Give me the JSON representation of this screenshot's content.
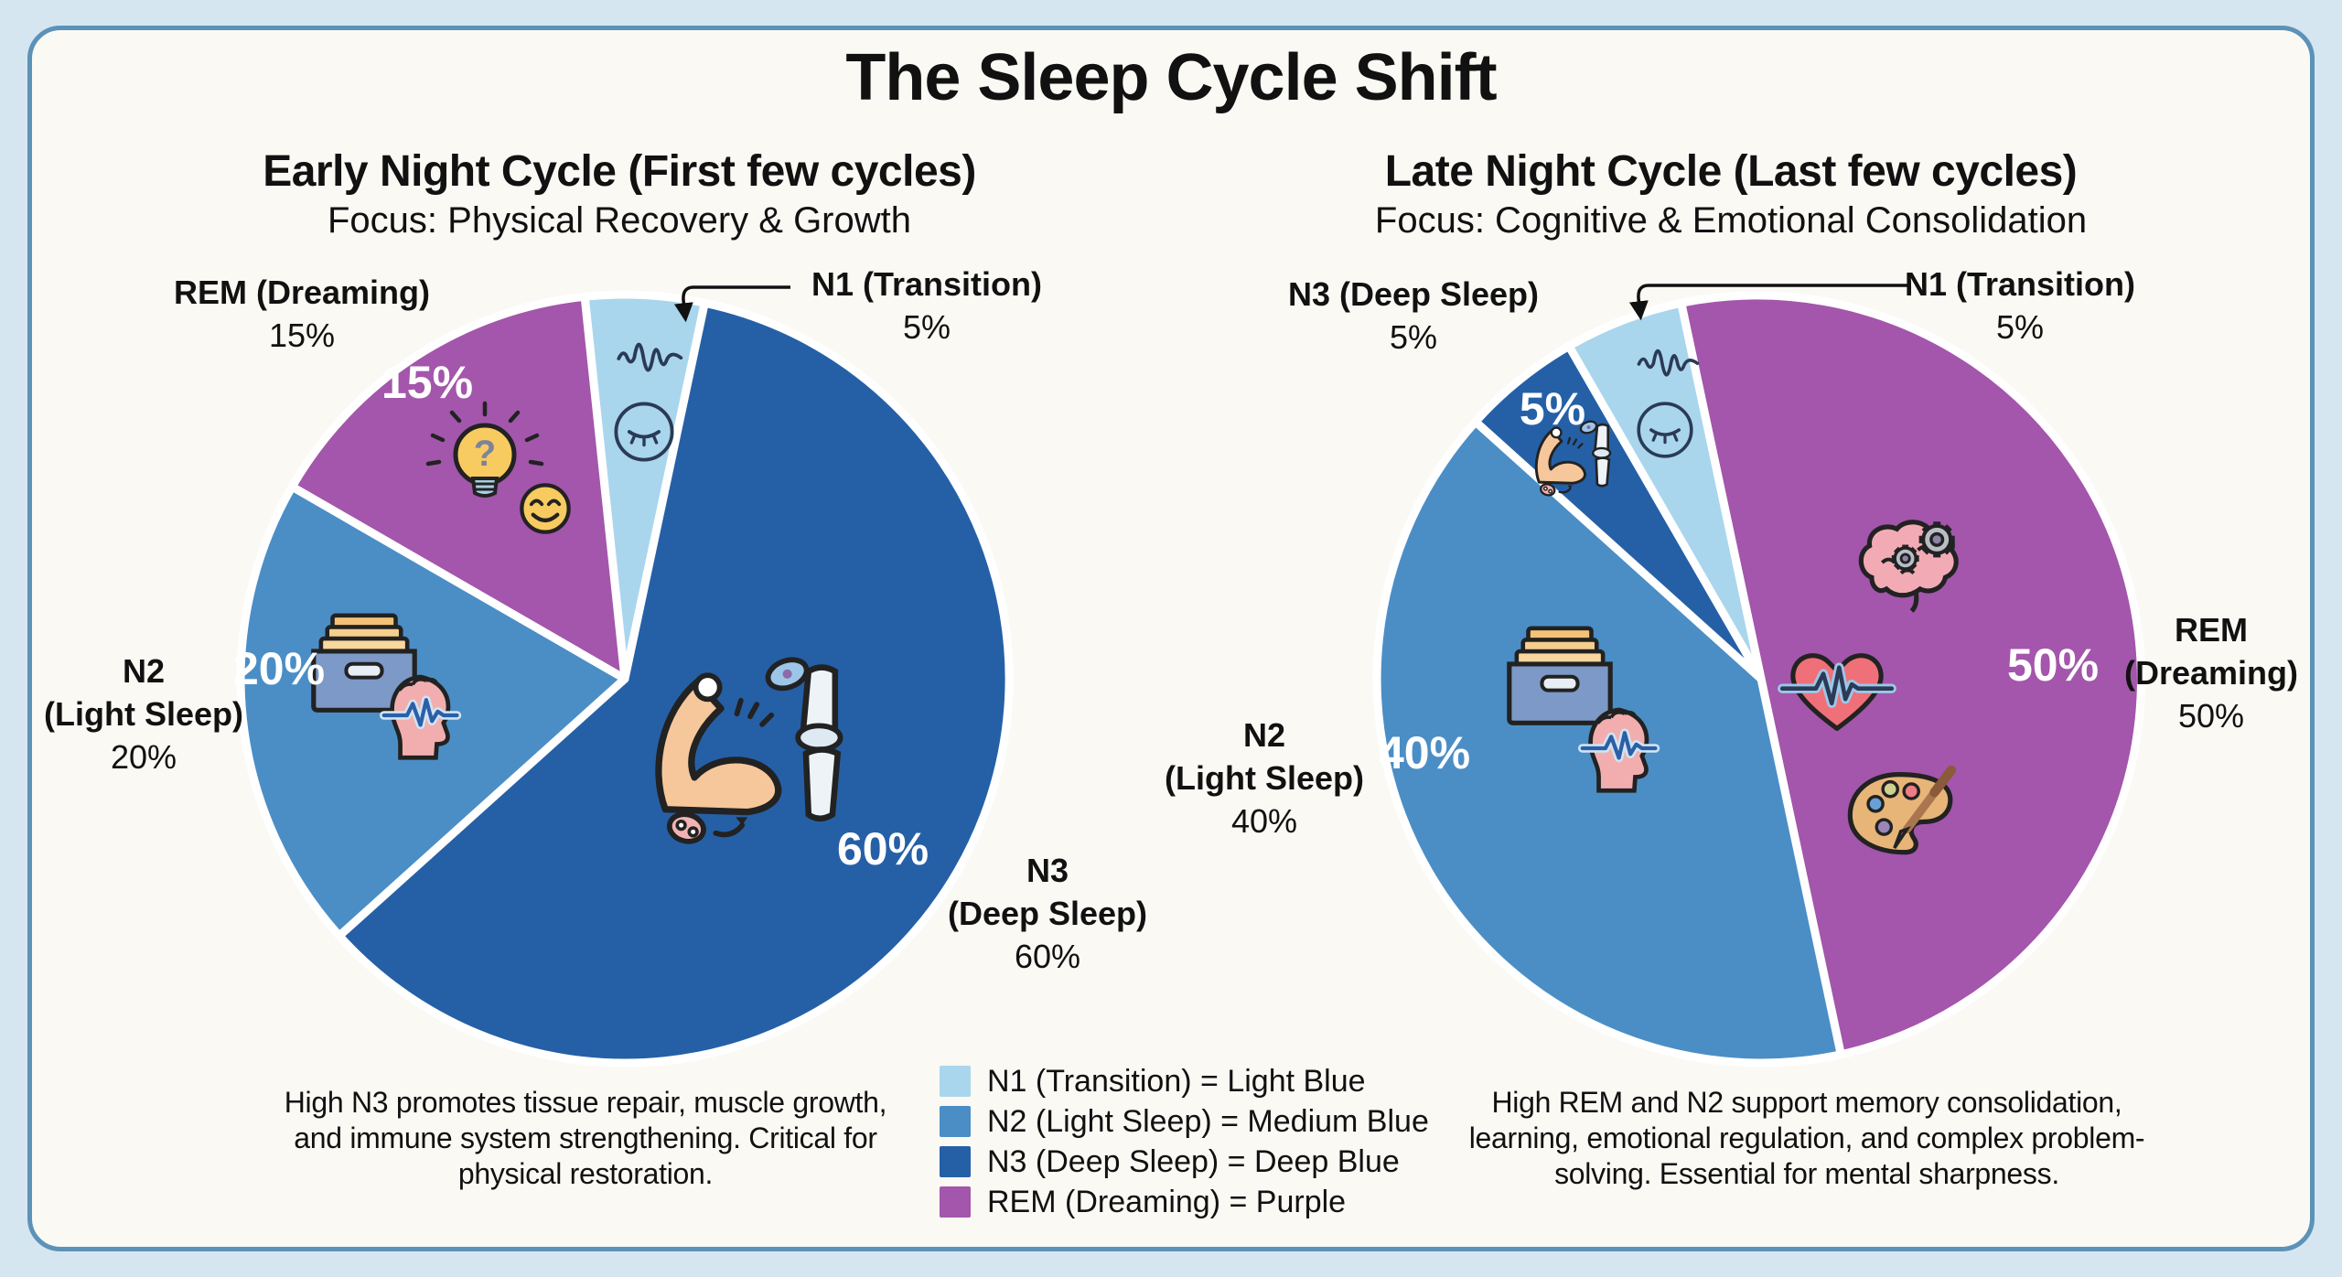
{
  "page": {
    "title": "The Sleep Cycle Shift"
  },
  "chart_data": [
    {
      "type": "pie",
      "title": "Early Night Cycle (First few cycles)",
      "subtitle": "Focus: Physical Recovery & Growth",
      "order_clockwise_from_top": [
        "N1",
        "N3",
        "N2",
        "REM"
      ],
      "slices": [
        {
          "id": "n1",
          "label": "N1 (Transition)",
          "value": 5,
          "pct": "5%",
          "color": "#a9d6ed",
          "color_name": "Light Blue",
          "icons": [
            "brainwave-icon",
            "sleeping-eye-icon"
          ],
          "inside_pct_shown": false
        },
        {
          "id": "n3",
          "label": "N3 (Deep Sleep)",
          "value": 60,
          "pct": "60%",
          "color": "#2560a7",
          "color_name": "Deep Blue",
          "icons": [
            "muscle-joint-icon"
          ],
          "inside_pct_shown": true
        },
        {
          "id": "n2",
          "label": "N2 (Light Sleep)",
          "value": 20,
          "pct": "20%",
          "color": "#4b8ec6",
          "color_name": "Medium Blue",
          "icons": [
            "file-cabinet-icon",
            "head-pulse-icon"
          ],
          "inside_pct_shown": true
        },
        {
          "id": "rem",
          "label": "REM (Dreaming)",
          "value": 15,
          "pct": "15%",
          "color": "#a356ab",
          "color_name": "Purple",
          "icons": [
            "lightbulb-question-icon",
            "smiley-icon"
          ],
          "inside_pct_shown": true
        }
      ],
      "note": "High N3 promotes tissue repair, muscle growth, and immune system strengthening. Critical for physical restoration."
    },
    {
      "type": "pie",
      "title": "Late Night Cycle (Last few cycles)",
      "subtitle": "Focus: Cognitive & Emotional Consolidation",
      "order_clockwise_from_top": [
        "REM",
        "N2",
        "N3",
        "N1"
      ],
      "slices": [
        {
          "id": "rem",
          "label": "REM (Dreaming)",
          "value": 50,
          "pct": "50%",
          "color": "#a356ab",
          "color_name": "Purple",
          "icons": [
            "brain-gears-icon",
            "heart-ekg-icon",
            "palette-icon"
          ],
          "inside_pct_shown": true
        },
        {
          "id": "n2",
          "label": "N2 (Light Sleep)",
          "value": 40,
          "pct": "40%",
          "color": "#4b8ec6",
          "color_name": "Medium Blue",
          "icons": [
            "file-cabinet-icon",
            "head-pulse-icon"
          ],
          "inside_pct_shown": true
        },
        {
          "id": "n3",
          "label": "N3 (Deep Sleep)",
          "value": 5,
          "pct": "5%",
          "color": "#2560a7",
          "color_name": "Deep Blue",
          "icons": [
            "muscle-mini-icon"
          ],
          "inside_pct_shown": true
        },
        {
          "id": "n1",
          "label": "N1 (Transition)",
          "value": 5,
          "pct": "5%",
          "color": "#a9d6ed",
          "color_name": "Light Blue",
          "icons": [
            "brainwave-icon",
            "sleeping-eye-icon"
          ],
          "inside_pct_shown": false
        }
      ],
      "note": "High REM and N2 support memory consolidation, learning, emotional regulation, and complex problem-solving. Essential for mental sharpness."
    }
  ],
  "callouts": {
    "left_rem": [
      "REM (Dreaming)",
      "15%"
    ],
    "left_n1": [
      "N1 (Transition)",
      "5%"
    ],
    "left_n2": [
      "N2",
      "(Light Sleep)",
      "20%"
    ],
    "left_n3": [
      "N3",
      "(Deep Sleep)",
      "60%"
    ],
    "right_n3": [
      "N3 (Deep Sleep)",
      "5%"
    ],
    "right_n1": [
      "N1 (Transition)",
      "5%"
    ],
    "right_n2": [
      "N2",
      "(Light Sleep)",
      "40%"
    ],
    "right_rem": [
      "REM",
      "(Dreaming)",
      "50%"
    ]
  },
  "legend": {
    "items": [
      {
        "label": "N1 (Transition) = Light Blue",
        "color": "#a9d6ed"
      },
      {
        "label": "N2 (Light Sleep) = Medium Blue",
        "color": "#4b8ec6"
      },
      {
        "label": "N3 (Deep Sleep) = Deep Blue",
        "color": "#2560a7"
      },
      {
        "label": "REM (Dreaming) = Purple",
        "color": "#a356ab"
      }
    ]
  }
}
